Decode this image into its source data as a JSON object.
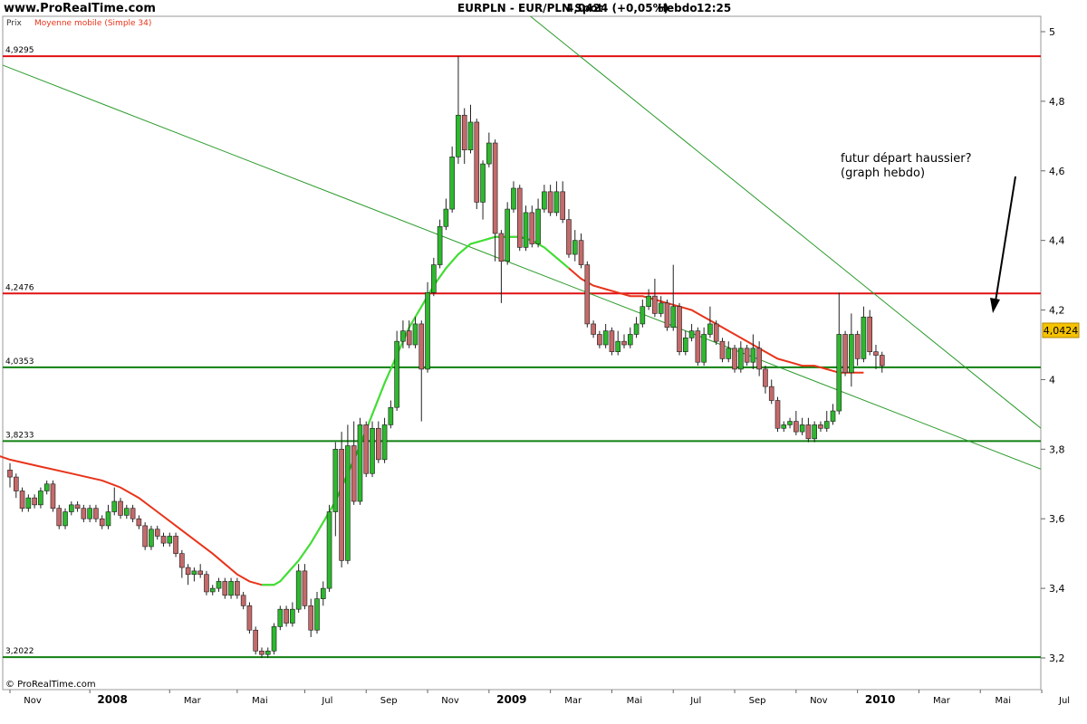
{
  "header": {
    "site": "www.ProRealTime.com",
    "title": "EURPLN - EUR/PLN Spot",
    "price_change": "4,0424 (+0,05%)",
    "timeframe": "Hebdo",
    "time": "12:25"
  },
  "panel": {
    "price_label": "Prix",
    "indicator_label": "Moyenne mobile (Simple 34)",
    "copyright": "© ProRealTime.com"
  },
  "annotation": {
    "line1": "futur départ haussier?",
    "line2": "(graph hebdo)"
  },
  "colors": {
    "bull": "#2eb82e",
    "bear": "#c46a6a",
    "ma34": "#e8341a",
    "ma_up": "#33e833",
    "resistance": "#e01010",
    "support": "#108010",
    "trendline": "#2a9a2a",
    "last_price_badge": "#f5c200"
  },
  "chart_data": {
    "type": "candlestick",
    "title": "EURPLN - EUR/PLN Spot",
    "instrument": "EUR/PLN Spot",
    "timeframe": "Hebdo",
    "last_price": "4,0424",
    "change": "+0,05%",
    "ylim": [
      3.15,
      5.05
    ],
    "y_ticks": [
      "5",
      "4,8",
      "4,6",
      "4,4",
      "4,2",
      "4",
      "3,8",
      "3,6",
      "3,4",
      "3,2"
    ],
    "y_tick_values": [
      5,
      4.8,
      4.6,
      4.4,
      4.2,
      4.0,
      3.8,
      3.6,
      3.4,
      3.2
    ],
    "x_labels": [
      "Nov",
      "2008",
      "Mar",
      "Mai",
      "Jul",
      "Sep",
      "Nov",
      "2009",
      "Mar",
      "Mai",
      "Jul",
      "Sep",
      "Nov",
      "2010",
      "Mar",
      "Mai",
      "Jul"
    ],
    "x_label_bold": [
      "2008",
      "2009",
      "2010"
    ],
    "x_label_pos": [
      0,
      13,
      26,
      37,
      48,
      58,
      68,
      78,
      88,
      98,
      108,
      118,
      128,
      138,
      148,
      158,
      168
    ],
    "x_range": [
      -5,
      177
    ],
    "levels": [
      {
        "label": "4,9295",
        "value": 4.9295,
        "kind": "resistance"
      },
      {
        "label": "4,2476",
        "value": 4.2476,
        "kind": "resistance"
      },
      {
        "label": "4,0353",
        "value": 4.0353,
        "kind": "support"
      },
      {
        "label": "3,8233",
        "value": 3.8233,
        "kind": "support"
      },
      {
        "label": "3,2022",
        "value": 3.2022,
        "kind": "support"
      }
    ],
    "trendlines": [
      {
        "x1": -5,
        "y1": 4.93,
        "x2": 177,
        "y2": 3.68
      },
      {
        "x1": 71,
        "y1": 5.24,
        "x2": 177,
        "y2": 3.73
      }
    ],
    "indicator": {
      "name": "Moyenne mobile (Simple 34)",
      "period": 34
    },
    "ohlc": [
      [
        3.74,
        3.72,
        3.76,
        3.69
      ],
      [
        3.72,
        3.68,
        3.73,
        3.66
      ],
      [
        3.68,
        3.63,
        3.69,
        3.62
      ],
      [
        3.63,
        3.66,
        3.67,
        3.62
      ],
      [
        3.66,
        3.64,
        3.67,
        3.63
      ],
      [
        3.64,
        3.68,
        3.69,
        3.63
      ],
      [
        3.68,
        3.7,
        3.71,
        3.67
      ],
      [
        3.7,
        3.63,
        3.71,
        3.62
      ],
      [
        3.63,
        3.58,
        3.64,
        3.57
      ],
      [
        3.58,
        3.62,
        3.63,
        3.57
      ],
      [
        3.62,
        3.64,
        3.65,
        3.61
      ],
      [
        3.64,
        3.63,
        3.65,
        3.62
      ],
      [
        3.63,
        3.6,
        3.64,
        3.59
      ],
      [
        3.6,
        3.63,
        3.64,
        3.59
      ],
      [
        3.63,
        3.6,
        3.64,
        3.59
      ],
      [
        3.6,
        3.58,
        3.61,
        3.57
      ],
      [
        3.58,
        3.62,
        3.64,
        3.57
      ],
      [
        3.62,
        3.65,
        3.69,
        3.61
      ],
      [
        3.65,
        3.61,
        3.66,
        3.6
      ],
      [
        3.61,
        3.63,
        3.64,
        3.6
      ],
      [
        3.63,
        3.6,
        3.64,
        3.59
      ],
      [
        3.6,
        3.58,
        3.61,
        3.57
      ],
      [
        3.58,
        3.52,
        3.59,
        3.51
      ],
      [
        3.52,
        3.57,
        3.58,
        3.51
      ],
      [
        3.57,
        3.55,
        3.58,
        3.54
      ],
      [
        3.55,
        3.53,
        3.56,
        3.52
      ],
      [
        3.53,
        3.55,
        3.56,
        3.52
      ],
      [
        3.55,
        3.5,
        3.56,
        3.49
      ],
      [
        3.5,
        3.46,
        3.51,
        3.43
      ],
      [
        3.46,
        3.44,
        3.47,
        3.41
      ],
      [
        3.44,
        3.45,
        3.46,
        3.42
      ],
      [
        3.45,
        3.44,
        3.47,
        3.43
      ],
      [
        3.44,
        3.39,
        3.45,
        3.38
      ],
      [
        3.39,
        3.4,
        3.41,
        3.38
      ],
      [
        3.4,
        3.42,
        3.43,
        3.39
      ],
      [
        3.42,
        3.38,
        3.43,
        3.37
      ],
      [
        3.38,
        3.42,
        3.43,
        3.37
      ],
      [
        3.42,
        3.38,
        3.43,
        3.37
      ],
      [
        3.38,
        3.35,
        3.39,
        3.34
      ],
      [
        3.35,
        3.28,
        3.36,
        3.27
      ],
      [
        3.28,
        3.22,
        3.29,
        3.21
      ],
      [
        3.22,
        3.21,
        3.23,
        3.2
      ],
      [
        3.21,
        3.22,
        3.23,
        3.2
      ],
      [
        3.22,
        3.29,
        3.3,
        3.21
      ],
      [
        3.29,
        3.34,
        3.35,
        3.28
      ],
      [
        3.34,
        3.3,
        3.35,
        3.29
      ],
      [
        3.3,
        3.34,
        3.36,
        3.29
      ],
      [
        3.34,
        3.45,
        3.47,
        3.33
      ],
      [
        3.45,
        3.35,
        3.47,
        3.34
      ],
      [
        3.35,
        3.28,
        3.37,
        3.26
      ],
      [
        3.28,
        3.37,
        3.39,
        3.27
      ],
      [
        3.37,
        3.4,
        3.42,
        3.35
      ],
      [
        3.4,
        3.62,
        3.64,
        3.39
      ],
      [
        3.62,
        3.8,
        3.82,
        3.55
      ],
      [
        3.8,
        3.48,
        3.85,
        3.46
      ],
      [
        3.48,
        3.81,
        3.87,
        3.47
      ],
      [
        3.81,
        3.65,
        3.88,
        3.64
      ],
      [
        3.65,
        3.87,
        3.89,
        3.64
      ],
      [
        3.87,
        3.73,
        3.88,
        3.72
      ],
      [
        3.73,
        3.86,
        3.88,
        3.72
      ],
      [
        3.86,
        3.77,
        3.88,
        3.76
      ],
      [
        3.77,
        3.87,
        3.89,
        3.76
      ],
      [
        3.87,
        3.92,
        3.94,
        3.86
      ],
      [
        3.92,
        4.11,
        4.14,
        3.91
      ],
      [
        4.11,
        4.14,
        4.17,
        4.09
      ],
      [
        4.14,
        4.1,
        4.17,
        4.09
      ],
      [
        4.1,
        4.16,
        4.18,
        4.09
      ],
      [
        4.16,
        4.03,
        4.17,
        3.88
      ],
      [
        4.03,
        4.25,
        4.28,
        4.02
      ],
      [
        4.25,
        4.33,
        4.35,
        4.24
      ],
      [
        4.33,
        4.44,
        4.46,
        4.32
      ],
      [
        4.44,
        4.49,
        4.52,
        4.43
      ],
      [
        4.49,
        4.64,
        4.67,
        4.48
      ],
      [
        4.64,
        4.76,
        4.93,
        4.62
      ],
      [
        4.76,
        4.66,
        4.78,
        4.62
      ],
      [
        4.66,
        4.74,
        4.79,
        4.65
      ],
      [
        4.74,
        4.51,
        4.75,
        4.49
      ],
      [
        4.51,
        4.62,
        4.63,
        4.46
      ],
      [
        4.62,
        4.68,
        4.71,
        4.61
      ],
      [
        4.68,
        4.42,
        4.69,
        4.34
      ],
      [
        4.42,
        4.34,
        4.43,
        4.22
      ],
      [
        4.34,
        4.49,
        4.51,
        4.33
      ],
      [
        4.49,
        4.55,
        4.57,
        4.48
      ],
      [
        4.55,
        4.38,
        4.56,
        4.37
      ],
      [
        4.38,
        4.48,
        4.5,
        4.37
      ],
      [
        4.48,
        4.39,
        4.5,
        4.38
      ],
      [
        4.39,
        4.49,
        4.52,
        4.38
      ],
      [
        4.49,
        4.54,
        4.56,
        4.48
      ],
      [
        4.54,
        4.48,
        4.56,
        4.47
      ],
      [
        4.48,
        4.54,
        4.57,
        4.47
      ],
      [
        4.54,
        4.46,
        4.57,
        4.45
      ],
      [
        4.46,
        4.36,
        4.49,
        4.35
      ],
      [
        4.36,
        4.4,
        4.43,
        4.34
      ],
      [
        4.4,
        4.33,
        4.42,
        4.32
      ],
      [
        4.33,
        4.16,
        4.34,
        4.15
      ],
      [
        4.16,
        4.13,
        4.17,
        4.12
      ],
      [
        4.13,
        4.1,
        4.14,
        4.09
      ],
      [
        4.1,
        4.14,
        4.16,
        4.09
      ],
      [
        4.14,
        4.08,
        4.15,
        4.07
      ],
      [
        4.08,
        4.11,
        4.14,
        4.07
      ],
      [
        4.11,
        4.1,
        4.13,
        4.09
      ],
      [
        4.1,
        4.13,
        4.15,
        4.09
      ],
      [
        4.13,
        4.16,
        4.18,
        4.12
      ],
      [
        4.16,
        4.21,
        4.23,
        4.15
      ],
      [
        4.21,
        4.24,
        4.26,
        4.2
      ],
      [
        4.24,
        4.19,
        4.29,
        4.18
      ],
      [
        4.19,
        4.22,
        4.24,
        4.18
      ],
      [
        4.22,
        4.15,
        4.23,
        4.14
      ],
      [
        4.15,
        4.21,
        4.33,
        4.14
      ],
      [
        4.21,
        4.08,
        4.22,
        4.07
      ],
      [
        4.08,
        4.12,
        4.14,
        4.07
      ],
      [
        4.12,
        4.14,
        4.16,
        4.11
      ],
      [
        4.14,
        4.05,
        4.15,
        4.04
      ],
      [
        4.05,
        4.13,
        4.15,
        4.04
      ],
      [
        4.13,
        4.16,
        4.21,
        4.12
      ],
      [
        4.16,
        4.11,
        4.17,
        4.1
      ],
      [
        4.11,
        4.06,
        4.12,
        4.05
      ],
      [
        4.06,
        4.09,
        4.11,
        4.05
      ],
      [
        4.09,
        4.03,
        4.1,
        4.02
      ],
      [
        4.03,
        4.09,
        4.11,
        4.02
      ],
      [
        4.09,
        4.05,
        4.1,
        4.04
      ],
      [
        4.05,
        4.09,
        4.13,
        4.03
      ],
      [
        4.09,
        4.03,
        4.11,
        4.01
      ],
      [
        4.03,
        3.98,
        4.04,
        3.96
      ],
      [
        3.98,
        3.94,
        4.0,
        3.93
      ],
      [
        3.94,
        3.86,
        3.95,
        3.85
      ],
      [
        3.86,
        3.87,
        3.88,
        3.85
      ],
      [
        3.87,
        3.88,
        3.89,
        3.86
      ],
      [
        3.88,
        3.85,
        3.91,
        3.84
      ],
      [
        3.85,
        3.87,
        3.89,
        3.84
      ],
      [
        3.87,
        3.83,
        3.89,
        3.82
      ],
      [
        3.83,
        3.87,
        3.88,
        3.82
      ],
      [
        3.87,
        3.86,
        3.88,
        3.85
      ],
      [
        3.86,
        3.88,
        3.91,
        3.85
      ],
      [
        3.88,
        3.91,
        3.93,
        3.87
      ],
      [
        3.91,
        4.13,
        4.25,
        3.9
      ],
      [
        4.13,
        4.02,
        4.14,
        4.01
      ],
      [
        4.02,
        4.13,
        4.19,
        3.98
      ],
      [
        4.13,
        4.06,
        4.14,
        4.04
      ],
      [
        4.06,
        4.18,
        4.21,
        4.05
      ],
      [
        4.18,
        4.08,
        4.2,
        4.07
      ],
      [
        4.08,
        4.07,
        4.1,
        4.03
      ],
      [
        4.07,
        4.04,
        4.08,
        4.02
      ]
    ],
    "ma34": [
      [
        -5,
        3.8
      ],
      [
        0,
        3.77
      ],
      [
        5,
        3.75
      ],
      [
        10,
        3.73
      ],
      [
        15,
        3.71
      ],
      [
        18,
        3.69
      ],
      [
        21,
        3.66
      ],
      [
        24,
        3.62
      ],
      [
        27,
        3.58
      ],
      [
        30,
        3.54
      ],
      [
        33,
        3.5
      ],
      [
        35,
        3.47
      ],
      [
        37,
        3.44
      ],
      [
        39,
        3.42
      ],
      [
        41,
        3.41
      ],
      [
        42,
        3.41
      ],
      [
        43,
        3.41
      ],
      [
        44,
        3.42
      ],
      [
        45,
        3.44
      ],
      [
        47,
        3.48
      ],
      [
        49,
        3.53
      ],
      [
        51,
        3.59
      ],
      [
        53,
        3.65
      ],
      [
        55,
        3.73
      ],
      [
        57,
        3.81
      ],
      [
        59,
        3.9
      ],
      [
        61,
        3.99
      ],
      [
        63,
        4.07
      ],
      [
        65,
        4.15
      ],
      [
        67,
        4.21
      ],
      [
        69,
        4.27
      ],
      [
        71,
        4.32
      ],
      [
        73,
        4.36
      ],
      [
        75,
        4.39
      ],
      [
        77,
        4.4
      ],
      [
        79,
        4.41
      ],
      [
        81,
        4.41
      ],
      [
        83,
        4.41
      ],
      [
        85,
        4.4
      ],
      [
        87,
        4.38
      ],
      [
        89,
        4.35
      ],
      [
        91,
        4.32
      ],
      [
        93,
        4.29
      ],
      [
        95,
        4.27
      ],
      [
        97,
        4.26
      ],
      [
        99,
        4.25
      ],
      [
        101,
        4.24
      ],
      [
        103,
        4.24
      ],
      [
        105,
        4.23
      ],
      [
        107,
        4.22
      ],
      [
        109,
        4.21
      ],
      [
        111,
        4.2
      ],
      [
        113,
        4.18
      ],
      [
        115,
        4.16
      ],
      [
        117,
        4.14
      ],
      [
        119,
        4.12
      ],
      [
        121,
        4.1
      ],
      [
        123,
        4.08
      ],
      [
        125,
        4.06
      ],
      [
        127,
        4.05
      ],
      [
        129,
        4.04
      ],
      [
        131,
        4.04
      ],
      [
        133,
        4.03
      ],
      [
        135,
        4.02
      ],
      [
        137,
        4.02
      ],
      [
        139,
        4.02
      ]
    ],
    "ma34_up_from": 41,
    "ma34_up_to": 91
  }
}
